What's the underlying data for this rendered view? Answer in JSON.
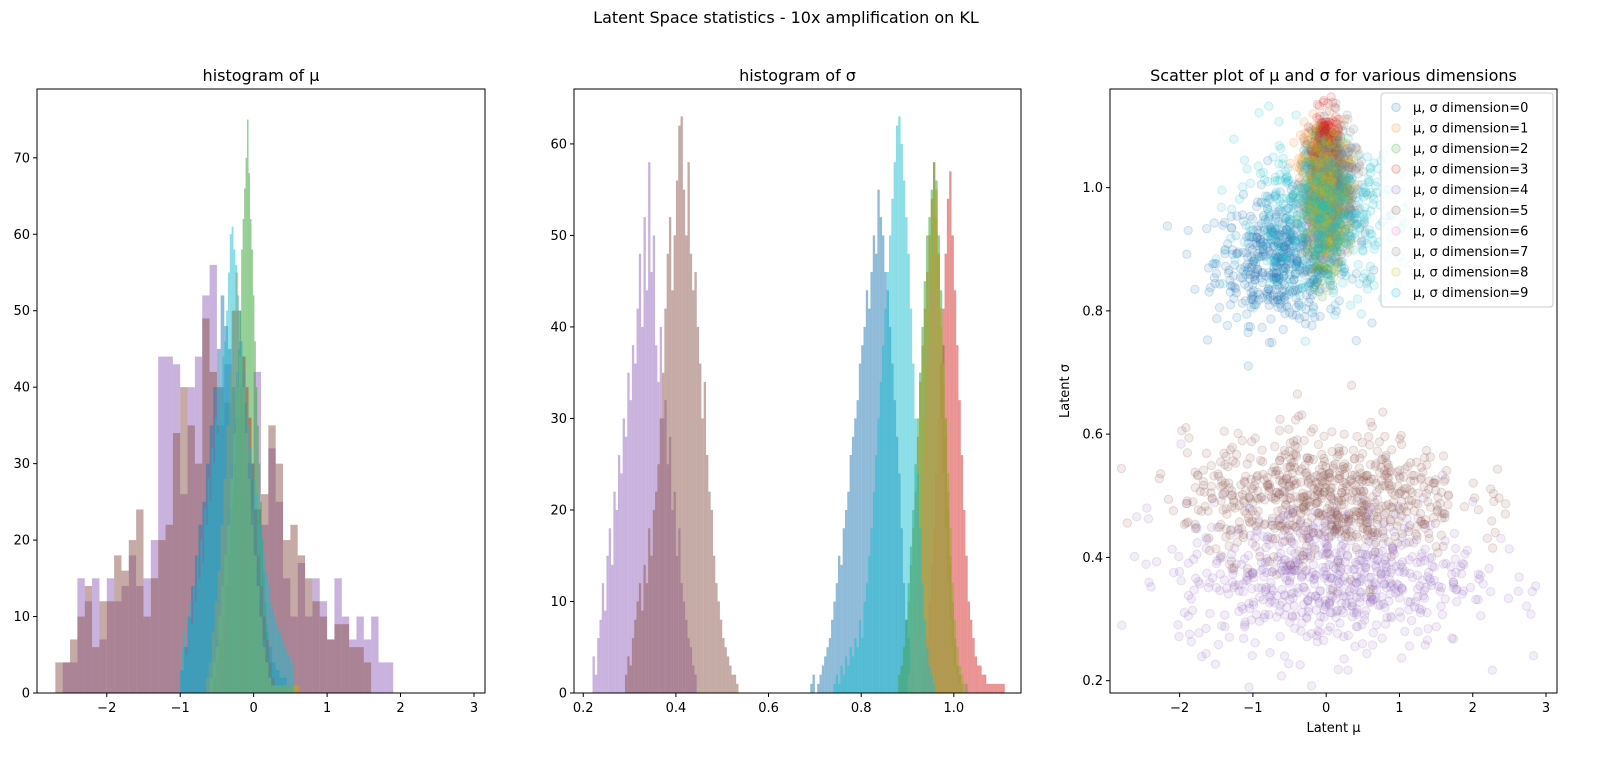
{
  "figure": {
    "suptitle": "Latent Space statistics - 10x amplification on KL"
  },
  "chart_data": [
    {
      "type": "histogram",
      "title": "histogram of μ",
      "xlim": [
        -2.95,
        3.15
      ],
      "ylim": [
        0,
        79
      ],
      "xticks": [
        -2,
        -1,
        0,
        1,
        2,
        3
      ],
      "xtick_labels": [
        "−2",
        "−1",
        "0",
        "1",
        "2",
        "3"
      ],
      "yticks": [
        0,
        10,
        20,
        30,
        40,
        50,
        60,
        70
      ],
      "ytick_labels": [
        "0",
        "10",
        "20",
        "30",
        "40",
        "50",
        "60",
        "70"
      ],
      "series": [
        {
          "color": "#9467bd",
          "alpha": 0.5,
          "bin_start": -2.6,
          "bin_width": 0.1,
          "counts": [
            4,
            4,
            15,
            12,
            15,
            7,
            15,
            12,
            14,
            18,
            14,
            15,
            20,
            44,
            44,
            43,
            26,
            40,
            44,
            52,
            56,
            35,
            43,
            40,
            38,
            28,
            42,
            22,
            32,
            25,
            15,
            10,
            17,
            10,
            15,
            12,
            7,
            15,
            10,
            7,
            10,
            7,
            10,
            4,
            4
          ]
        },
        {
          "color": "#8c564b",
          "alpha": 0.5,
          "bin_start": -2.7,
          "bin_width": 0.1,
          "counts": [
            4,
            4,
            7,
            10,
            14,
            6,
            12,
            12,
            18,
            16,
            20,
            24,
            10,
            15,
            20,
            22,
            34,
            40,
            35,
            30,
            49,
            42,
            40,
            38,
            50,
            26,
            30,
            24,
            26,
            35,
            30,
            20,
            22,
            18,
            15,
            12,
            10,
            7,
            9,
            9,
            6,
            6,
            4
          ]
        },
        {
          "color": "#1f77b4",
          "alpha": 0.5,
          "bin_start": -1.0,
          "bin_width": 0.05,
          "counts": [
            3,
            6,
            10,
            14,
            18,
            22,
            25,
            30,
            35,
            40,
            45,
            52,
            48,
            45,
            40,
            36,
            32,
            28,
            22,
            18,
            15,
            12,
            10,
            8,
            6,
            4,
            3,
            2,
            2,
            1
          ]
        },
        {
          "color": "#ff7f0e",
          "alpha": 0.5,
          "bin_start": -0.65,
          "bin_width": 0.04,
          "counts": [
            2,
            4,
            8,
            12,
            16,
            22,
            28,
            35,
            42,
            50,
            55,
            50,
            44,
            38,
            30,
            24,
            18,
            12,
            8,
            5,
            3,
            2,
            1,
            1,
            1,
            1,
            1,
            1,
            1,
            1,
            1,
            1
          ]
        },
        {
          "color": "#2ca02c",
          "alpha": 0.5,
          "bin_start": -0.45,
          "bin_width": 0.02,
          "counts": [
            2,
            3,
            5,
            8,
            10,
            14,
            18,
            22,
            26,
            30,
            35,
            40,
            45,
            50,
            58,
            62,
            66,
            70,
            75,
            68,
            62,
            58,
            52,
            46,
            40,
            35,
            30,
            25,
            20,
            16,
            12,
            9,
            6,
            4,
            3,
            2,
            1,
            1,
            1,
            1,
            1,
            1,
            1,
            1,
            1
          ]
        },
        {
          "color": "#d62728",
          "alpha": 0.5,
          "bin_start": -0.55,
          "bin_width": 0.04,
          "counts": [
            2,
            4,
            7,
            10,
            14,
            18,
            24,
            30,
            36,
            40,
            44,
            40,
            36,
            30,
            24,
            18,
            14,
            10,
            7,
            4,
            2,
            1,
            1,
            1,
            1,
            1,
            1
          ]
        },
        {
          "color": "#7f7f7f",
          "alpha": 0.5,
          "bin_start": -0.6,
          "bin_width": 0.04,
          "counts": [
            2,
            4,
            7,
            10,
            14,
            18,
            24,
            30,
            36,
            42,
            46,
            42,
            36,
            30,
            24,
            18,
            14,
            10,
            7,
            4,
            2,
            1,
            1,
            1,
            1,
            1,
            1,
            1,
            1,
            1
          ]
        },
        {
          "color": "#bcbd22",
          "alpha": 0.5,
          "bin_start": -0.6,
          "bin_width": 0.04,
          "counts": [
            2,
            4,
            6,
            10,
            14,
            18,
            22,
            28,
            34,
            40,
            44,
            40,
            34,
            28,
            22,
            18,
            14,
            10,
            6,
            4,
            2,
            1,
            1,
            1,
            1,
            1,
            1,
            1,
            1,
            1
          ]
        },
        {
          "color": "#17becf",
          "alpha": 0.5,
          "bin_start": -1.0,
          "bin_width": 0.025,
          "counts": [
            3,
            6,
            8,
            5,
            10,
            12,
            9,
            14,
            12,
            18,
            15,
            20,
            17,
            24,
            22,
            28,
            25,
            32,
            30,
            36,
            34,
            40,
            38,
            44,
            46,
            50,
            55,
            60,
            61,
            58,
            56,
            52,
            50,
            46,
            44,
            40,
            38,
            35,
            32,
            30,
            28,
            26,
            24,
            22,
            20,
            18,
            16,
            15,
            14,
            12,
            11,
            10,
            9,
            8,
            8,
            7,
            6,
            6,
            5,
            5,
            4,
            4
          ]
        }
      ]
    },
    {
      "type": "histogram",
      "title": "histogram of σ",
      "xlim": [
        0.18,
        1.145
      ],
      "ylim": [
        0,
        66
      ],
      "xticks": [
        0.2,
        0.4,
        0.6,
        0.8,
        1.0
      ],
      "xtick_labels": [
        "0.2",
        "0.4",
        "0.6",
        "0.8",
        "1.0"
      ],
      "yticks": [
        0,
        10,
        20,
        30,
        40,
        50,
        60
      ],
      "ytick_labels": [
        "0",
        "10",
        "20",
        "30",
        "40",
        "50",
        "60"
      ],
      "series": [
        {
          "color": "#9467bd",
          "alpha": 0.5,
          "bin_start": 0.22,
          "bin_width": 0.005,
          "counts": [
            4,
            2,
            6,
            8,
            12,
            9,
            15,
            18,
            14,
            22,
            20,
            26,
            24,
            30,
            28,
            35,
            32,
            38,
            36,
            42,
            48,
            40,
            52,
            44,
            58,
            46,
            50,
            38,
            34,
            40,
            30,
            32,
            25,
            28,
            20,
            22,
            15,
            18,
            12,
            10,
            8,
            6,
            5,
            3,
            2
          ]
        },
        {
          "color": "#8c564b",
          "alpha": 0.5,
          "bin_start": 0.29,
          "bin_width": 0.005,
          "counts": [
            2,
            4,
            3,
            6,
            8,
            10,
            12,
            9,
            14,
            12,
            18,
            15,
            20,
            22,
            25,
            30,
            35,
            42,
            48,
            52,
            44,
            50,
            56,
            62,
            63,
            55,
            50,
            58,
            48,
            44,
            46,
            40,
            36,
            30,
            34,
            26,
            22,
            20,
            15,
            12,
            10,
            8,
            6,
            5,
            4,
            3,
            2,
            2,
            1
          ]
        },
        {
          "color": "#1f77b4",
          "alpha": 0.5,
          "bin_start": 0.69,
          "bin_width": 0.005,
          "counts": [
            1,
            2,
            0,
            1,
            2,
            3,
            4,
            5,
            6,
            8,
            10,
            12,
            15,
            14,
            18,
            20,
            22,
            26,
            28,
            30,
            32,
            36,
            38,
            40,
            44,
            42,
            46,
            50,
            48,
            55,
            52,
            50,
            46,
            44,
            40,
            36,
            32,
            28,
            24,
            18,
            12,
            8,
            6,
            4,
            2,
            1
          ]
        },
        {
          "color": "#ff7f0e",
          "alpha": 0.5,
          "bin_start": 0.88,
          "bin_width": 0.005,
          "counts": [
            2,
            3,
            5,
            8,
            10,
            14,
            18,
            22,
            28,
            34,
            38,
            42,
            46,
            50,
            54,
            58,
            52,
            48,
            40,
            34,
            28,
            20,
            14,
            8,
            5,
            3,
            2,
            1
          ]
        },
        {
          "color": "#2ca02c",
          "alpha": 0.5,
          "bin_start": 0.88,
          "bin_width": 0.005,
          "counts": [
            2,
            3,
            5,
            8,
            12,
            16,
            20,
            25,
            30,
            35,
            40,
            45,
            50,
            52,
            55,
            58,
            56,
            50,
            44,
            38,
            30,
            22,
            15,
            10,
            6,
            3,
            2,
            1
          ]
        },
        {
          "color": "#d62728",
          "alpha": 0.5,
          "bin_start": 0.93,
          "bin_width": 0.005,
          "counts": [
            2,
            4,
            6,
            10,
            14,
            18,
            24,
            30,
            36,
            42,
            48,
            54,
            57,
            50,
            44,
            38,
            32,
            26,
            20,
            15,
            10,
            8,
            6,
            4,
            3,
            3,
            2,
            2,
            1,
            1,
            1,
            1,
            1,
            1,
            1,
            1
          ]
        },
        {
          "color": "#e377c2",
          "alpha": 0.5,
          "bin_start": 0.9,
          "bin_width": 0.005,
          "counts": [
            2,
            4,
            6,
            8,
            12,
            16,
            20,
            26,
            32,
            38,
            44,
            48,
            44,
            38,
            30,
            24,
            18,
            12,
            8,
            5,
            3,
            2,
            1,
            1
          ]
        },
        {
          "color": "#7f7f7f",
          "alpha": 0.5,
          "bin_start": 0.9,
          "bin_width": 0.005,
          "counts": [
            2,
            4,
            6,
            10,
            14,
            18,
            24,
            30,
            36,
            42,
            48,
            52,
            55,
            48,
            42,
            36,
            30,
            24,
            18,
            12,
            8,
            5,
            3,
            2,
            1,
            1
          ]
        },
        {
          "color": "#bcbd22",
          "alpha": 0.5,
          "bin_start": 0.9,
          "bin_width": 0.005,
          "counts": [
            2,
            4,
            6,
            10,
            14,
            18,
            24,
            30,
            36,
            42,
            48,
            52,
            55,
            48,
            42,
            36,
            30,
            24,
            18,
            12,
            8,
            5,
            3,
            2,
            1
          ]
        },
        {
          "color": "#17becf",
          "alpha": 0.5,
          "bin_start": 0.74,
          "bin_width": 0.005,
          "counts": [
            1,
            2,
            1,
            3,
            2,
            4,
            3,
            5,
            4,
            6,
            5,
            8,
            6,
            10,
            12,
            15,
            18,
            22,
            26,
            30,
            34,
            38,
            42,
            46,
            50,
            54,
            58,
            62,
            63,
            60,
            56,
            52,
            48,
            42,
            36,
            30,
            24,
            18,
            12,
            8,
            5,
            3,
            2,
            1
          ]
        }
      ]
    },
    {
      "type": "scatter",
      "title": "Scatter plot of μ and σ for various dimensions",
      "xlabel": "Latent μ",
      "ylabel": "Latent σ",
      "xlim": [
        -2.95,
        3.15
      ],
      "ylim": [
        0.18,
        1.16
      ],
      "xticks": [
        -2,
        -1,
        0,
        1,
        2,
        3
      ],
      "xtick_labels": [
        "−2",
        "−1",
        "0",
        "1",
        "2",
        "3"
      ],
      "yticks": [
        0.2,
        0.4,
        0.6,
        0.8,
        1.0
      ],
      "ytick_labels": [
        "0.2",
        "0.4",
        "0.6",
        "0.8",
        "1.0"
      ],
      "legend_loc": "upper right",
      "marker_alpha": 0.12,
      "series": [
        {
          "name": "μ, σ dimension=0",
          "color": "#1f77b4",
          "n": 500,
          "mx": -0.6,
          "sx": 0.45,
          "my": 0.88,
          "sy": 0.05
        },
        {
          "name": "μ, σ dimension=1",
          "color": "#ff7f0e",
          "n": 350,
          "mx": -0.05,
          "sx": 0.15,
          "my": 1.03,
          "sy": 0.04
        },
        {
          "name": "μ, σ dimension=2",
          "color": "#2ca02c",
          "n": 350,
          "mx": 0.0,
          "sx": 0.12,
          "my": 0.98,
          "sy": 0.05
        },
        {
          "name": "μ, σ dimension=3",
          "color": "#d62728",
          "n": 300,
          "mx": 0.0,
          "sx": 0.08,
          "my": 1.06,
          "sy": 0.03
        },
        {
          "name": "μ, σ dimension=4",
          "color": "#9467bd",
          "n": 700,
          "mx": 0.0,
          "sx": 1.0,
          "my": 0.37,
          "sy": 0.06
        },
        {
          "name": "μ, σ dimension=5",
          "color": "#8c564b",
          "n": 700,
          "mx": 0.0,
          "sx": 0.95,
          "my": 0.5,
          "sy": 0.05
        },
        {
          "name": "μ, σ dimension=6",
          "color": "#e377c2",
          "n": 300,
          "mx": 0.0,
          "sx": 0.15,
          "my": 0.98,
          "sy": 0.04
        },
        {
          "name": "μ, σ dimension=7",
          "color": "#7f7f7f",
          "n": 350,
          "mx": 0.1,
          "sx": 0.18,
          "my": 1.0,
          "sy": 0.05
        },
        {
          "name": "μ, σ dimension=8",
          "color": "#bcbd22",
          "n": 350,
          "mx": 0.0,
          "sx": 0.15,
          "my": 0.98,
          "sy": 0.05
        },
        {
          "name": "μ, σ dimension=9",
          "color": "#17becf",
          "n": 500,
          "mx": -0.1,
          "sx": 0.55,
          "my": 0.95,
          "sy": 0.06
        }
      ]
    }
  ]
}
